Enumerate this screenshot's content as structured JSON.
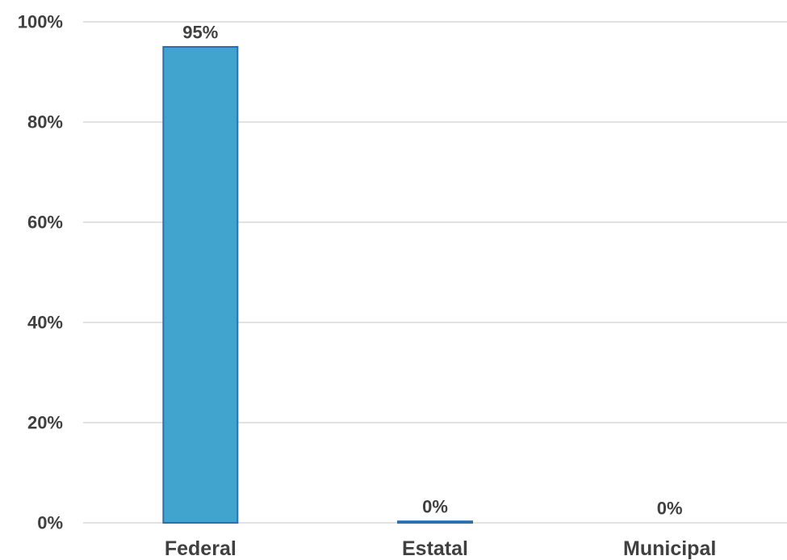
{
  "chart_data": {
    "type": "bar",
    "categories": [
      "Federal",
      "Estatal",
      "Municipal"
    ],
    "values": [
      95,
      0.3,
      0
    ],
    "data_labels": [
      "95%",
      "0%",
      "0%"
    ],
    "ylim": [
      0,
      100
    ],
    "yticks": [
      0,
      20,
      40,
      60,
      80,
      100
    ],
    "ytick_labels": [
      "0%",
      "20%",
      "40%",
      "60%",
      "80%",
      "100%"
    ],
    "grid": true,
    "legend": "none",
    "colors": {
      "bar_fill": "#41a4cf",
      "bar_stroke": "#2a6fb0",
      "grid": "#d9d9d9",
      "text": "#404040"
    }
  }
}
